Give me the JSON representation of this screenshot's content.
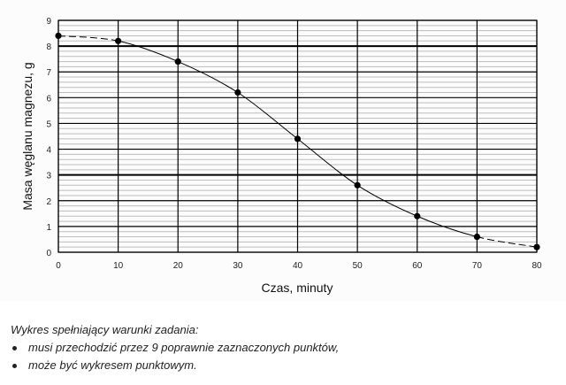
{
  "chart_data": {
    "type": "line",
    "title": "",
    "xlabel": "Czas, minuty",
    "ylabel": "Masa węglanu magnezu, g",
    "xlim": [
      0,
      80
    ],
    "ylim": [
      0,
      9
    ],
    "x_ticks": [
      "0",
      "10",
      "20",
      "30",
      "40",
      "50",
      "60",
      "70",
      "80"
    ],
    "y_ticks": [
      "0",
      "1",
      "2",
      "3",
      "4",
      "5",
      "6",
      "7",
      "8",
      "9"
    ],
    "grid": true,
    "minor_grid_step_y": 0.2,
    "markers": "filled-circle",
    "curve": "smooth",
    "x": [
      0,
      10,
      20,
      30,
      40,
      50,
      60,
      70,
      80
    ],
    "y": [
      8.4,
      8.2,
      7.4,
      6.2,
      4.4,
      2.6,
      1.4,
      0.6,
      0.2
    ],
    "colors": {
      "line": "#000000",
      "major_grid": "#000000",
      "minor_grid": "#bdbdbd"
    }
  },
  "caption": {
    "intro": "Wykres spełniający warunki zadania:",
    "items": [
      "musi przechodzić przez 9 poprawnie zaznaczonych punktów,",
      "może być wykresem punktowym."
    ]
  }
}
